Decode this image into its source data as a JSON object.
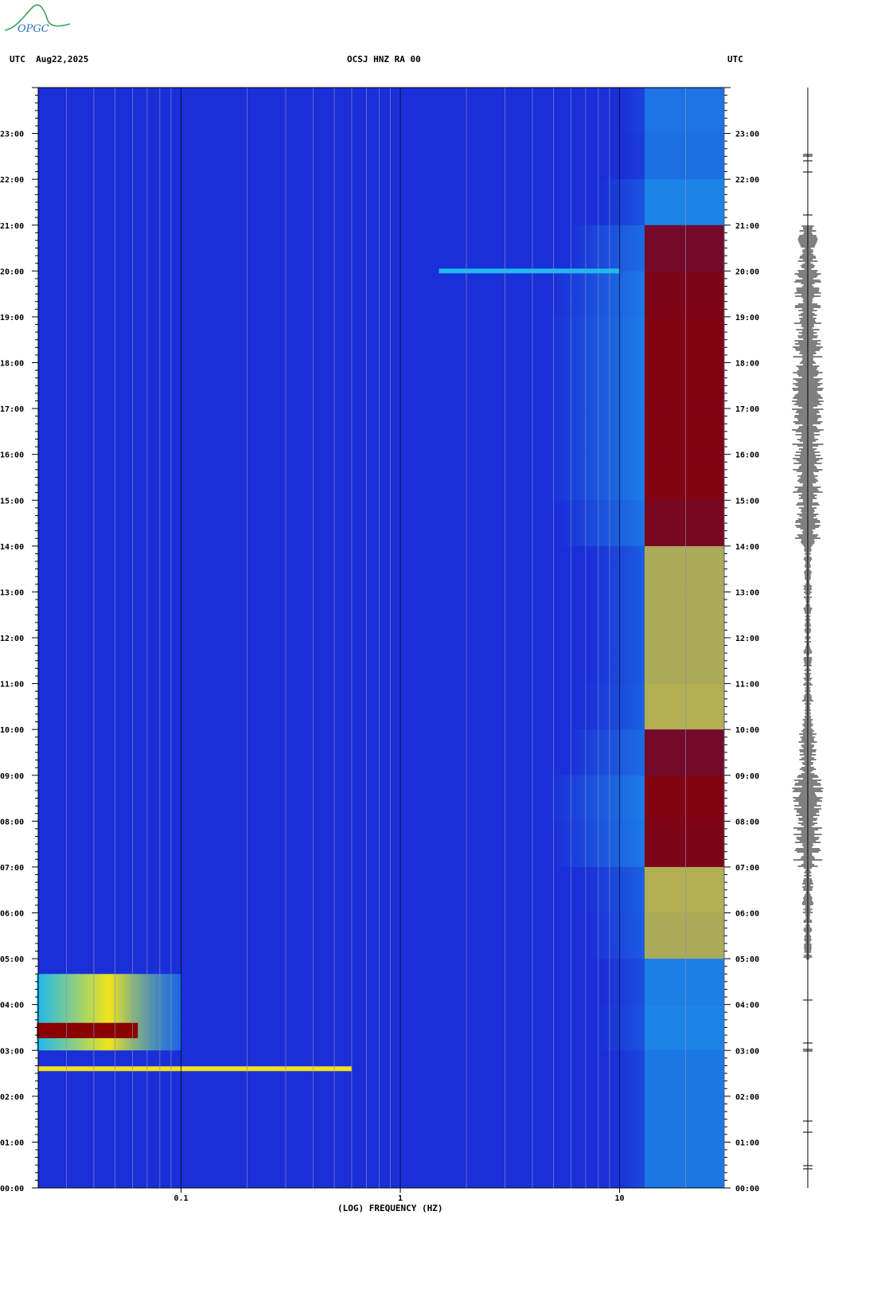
{
  "header": {
    "logo_text": "OPGC",
    "left_label": "UTC  Aug22,2025",
    "center_label": "OCSJ HNZ RA 00",
    "right_label": "UTC"
  },
  "colors": {
    "background_low": "#1a2fd8",
    "mid": "#1fb8f0",
    "high_yellow": "#f0e41a",
    "high_red": "#8b0000",
    "trace": "#000000"
  },
  "chart_data": {
    "type": "heatmap",
    "xlabel": "(LOG) FREQUENCY (HZ)",
    "x_scale": "log",
    "xlim_hz": [
      0.0223,
      30
    ],
    "x_tick_labels": [
      "0.1",
      "1",
      "10"
    ],
    "x_ticks_hz": [
      0.1,
      1,
      10
    ],
    "ylim_utc_hours": [
      0,
      24
    ],
    "y_tick_labels": [
      "00:00",
      "01:00",
      "02:00",
      "03:00",
      "04:00",
      "05:00",
      "06:00",
      "07:00",
      "08:00",
      "09:00",
      "10:00",
      "11:00",
      "12:00",
      "13:00",
      "14:00",
      "15:00",
      "16:00",
      "17:00",
      "18:00",
      "19:00",
      "20:00",
      "21:00",
      "22:00",
      "23:00"
    ],
    "noise_band_hz": [
      13,
      30
    ],
    "noise_activity_by_hour": [
      0.3,
      0.3,
      0.3,
      0.45,
      0.4,
      0.55,
      0.6,
      0.9,
      0.95,
      0.75,
      0.6,
      0.55,
      0.55,
      0.55,
      0.85,
      0.95,
      0.95,
      0.95,
      0.95,
      0.9,
      0.75,
      0.45,
      0.2,
      0.25
    ],
    "events": [
      {
        "time_utc": "02:36",
        "max_freq_hz": 0.6,
        "intensity": "high"
      },
      {
        "time_utc": "03:00-04:40",
        "freq_range_hz": [
          0.022,
          0.1
        ],
        "intensity": "very high"
      },
      {
        "time_utc": "20:00",
        "freq_range_hz": [
          1.5,
          10
        ],
        "intensity": "medium"
      }
    ],
    "trace_label": "seismogram"
  }
}
